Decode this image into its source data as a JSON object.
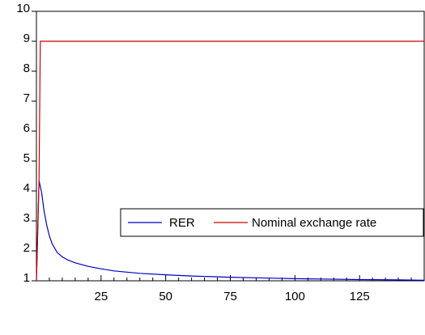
{
  "chart_data": {
    "type": "line",
    "title": "",
    "xlabel": "",
    "ylabel": "",
    "xlim": [
      0,
      150
    ],
    "ylim": [
      1,
      10
    ],
    "x_ticks": [
      25,
      50,
      75,
      100,
      125
    ],
    "x_tick_labels": [
      "25",
      "50",
      "75",
      "100",
      "125"
    ],
    "y_ticks": [
      1,
      2,
      3,
      4,
      5,
      6,
      7,
      8,
      9,
      10
    ],
    "y_tick_labels": [
      "1",
      "2",
      "3",
      "4",
      "5",
      "6",
      "7",
      "8",
      "9",
      "10"
    ],
    "grid": false,
    "legend": {
      "placement": "center-right",
      "orientation": "horizontal"
    },
    "series": [
      {
        "name": "RER",
        "color": "#0000cc",
        "x": [
          0,
          1,
          2,
          3,
          4,
          5,
          6,
          8,
          10,
          12,
          15,
          20,
          25,
          30,
          40,
          50,
          60,
          75,
          90,
          100,
          110,
          125,
          140,
          150
        ],
        "y": [
          1,
          4.35,
          3.95,
          3.3,
          2.85,
          2.5,
          2.25,
          1.95,
          1.8,
          1.7,
          1.6,
          1.48,
          1.4,
          1.33,
          1.25,
          1.2,
          1.16,
          1.12,
          1.09,
          1.07,
          1.06,
          1.04,
          1.03,
          1.02
        ]
      },
      {
        "name": "Nominal exchange rate",
        "color": "#cc0000",
        "x": [
          0,
          1,
          1.5,
          150
        ],
        "y": [
          1,
          4.3,
          9,
          9
        ]
      }
    ]
  }
}
